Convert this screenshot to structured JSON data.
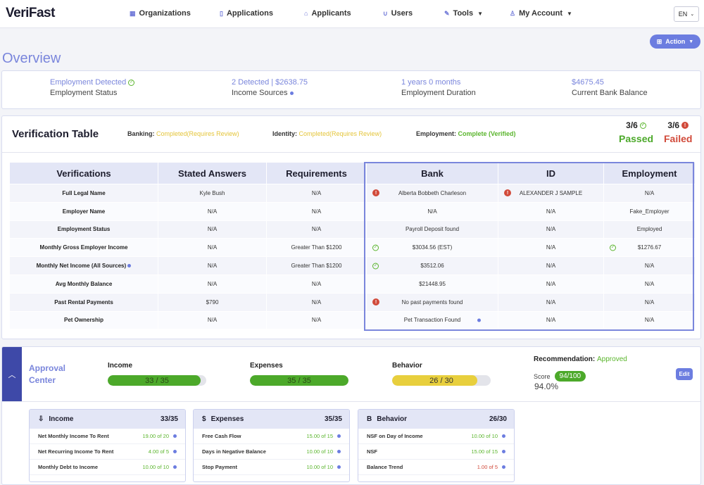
{
  "nav": {
    "logo": "VeriFast",
    "items": [
      "Organizations",
      "Applications",
      "Applicants",
      "Users",
      "Tools",
      "My Account"
    ],
    "lang": "EN"
  },
  "action_label": "Action",
  "page_title": "Overview",
  "summary": [
    {
      "value": "Employment Detected",
      "label": "Employment Status"
    },
    {
      "value": "2 Detected | $2638.75",
      "label": "Income Sources"
    },
    {
      "value": "1 years 0 months",
      "label": "Employment Duration"
    },
    {
      "value": "$4675.45",
      "label": "Current Bank Balance"
    }
  ],
  "verification": {
    "title": "Verification Table",
    "banking_label": "Banking:",
    "banking_value": "Completed(Requires Review)",
    "identity_label": "Identity:",
    "identity_value": "Completed(Requires Review)",
    "employment_label": "Employment:",
    "employment_value": "Complete (Verified)",
    "passed_count": "3/6",
    "passed_label": "Passed",
    "failed_count": "3/6",
    "failed_label": "Failed",
    "columns": [
      "Verifications",
      "Stated Answers",
      "Requirements",
      "Bank",
      "ID",
      "Employment"
    ],
    "rows": [
      {
        "label": "Full Legal Name",
        "stated": "Kyle Bush",
        "req": "N/A",
        "bank": "Alberta Bobbeth Charleson",
        "id": "ALEXANDER J SAMPLE",
        "emp": "N/A"
      },
      {
        "label": "Employer Name",
        "stated": "N/A",
        "req": "N/A",
        "bank": "N/A",
        "id": "N/A",
        "emp": "Fake_Employer"
      },
      {
        "label": "Employment Status",
        "stated": "N/A",
        "req": "N/A",
        "bank": "Payroll Deposit found",
        "id": "N/A",
        "emp": "Employed"
      },
      {
        "label": "Monthly Gross Employer Income",
        "stated": "N/A",
        "req": "Greater Than $1200",
        "bank": "$3034.56 (EST)",
        "id": "N/A",
        "emp": "$1276.67"
      },
      {
        "label": "Monthly Net Income (All Sources)",
        "stated": "N/A",
        "req": "Greater Than $1200",
        "bank": "$3512.06",
        "id": "N/A",
        "emp": "N/A"
      },
      {
        "label": "Avg Monthly Balance",
        "stated": "N/A",
        "req": "N/A",
        "bank": "$21448.95",
        "id": "N/A",
        "emp": "N/A"
      },
      {
        "label": "Past Rental Payments",
        "stated": "$790",
        "req": "N/A",
        "bank": "No past payments found",
        "id": "N/A",
        "emp": "N/A"
      },
      {
        "label": "Pet Ownership",
        "stated": "N/A",
        "req": "N/A",
        "bank": "Pet Transaction Found",
        "id": "N/A",
        "emp": "N/A"
      }
    ]
  },
  "approval": {
    "title": "Approval Center",
    "meters": [
      {
        "label": "Income",
        "text": "33 / 35",
        "fraction": 0.943,
        "color": "#4ca92a"
      },
      {
        "label": "Expenses",
        "text": "35 / 35",
        "fraction": 1.0,
        "color": "#4ca92a"
      },
      {
        "label": "Behavior",
        "text": "26 / 30",
        "fraction": 0.867,
        "color": "#e8cf3d"
      }
    ],
    "recommendation_label": "Recommendation:",
    "recommendation_value": "Approved",
    "score_label": "Score",
    "score_value": "94/100",
    "score_pct": "94.0%",
    "edit_label": "Edit"
  },
  "mini_cards": [
    {
      "icon": "⇩",
      "title": "Income",
      "score": "33/35",
      "rows": [
        {
          "label": "Net Monthly Income To Rent",
          "value": "19.00 of 20",
          "bad": false
        },
        {
          "label": "Net Recurring Income To Rent",
          "value": "4.00 of 5",
          "bad": false
        },
        {
          "label": "Monthly Debt to Income",
          "value": "10.00 of 10",
          "bad": false
        }
      ]
    },
    {
      "icon": "$",
      "title": "Expenses",
      "score": "35/35",
      "rows": [
        {
          "label": "Free Cash Flow",
          "value": "15.00 of 15",
          "bad": false
        },
        {
          "label": "Days in Negative Balance",
          "value": "10.00 of 10",
          "bad": false
        },
        {
          "label": "Stop Payment",
          "value": "10.00 of 10",
          "bad": false
        }
      ]
    },
    {
      "icon": "B",
      "title": "Behavior",
      "score": "26/30",
      "rows": [
        {
          "label": "NSF on Day of Income",
          "value": "10.00 of 10",
          "bad": false
        },
        {
          "label": "NSF",
          "value": "15.00 of 15",
          "bad": false
        },
        {
          "label": "Balance Trend",
          "value": "1.00 of 5",
          "bad": true
        }
      ]
    }
  ]
}
